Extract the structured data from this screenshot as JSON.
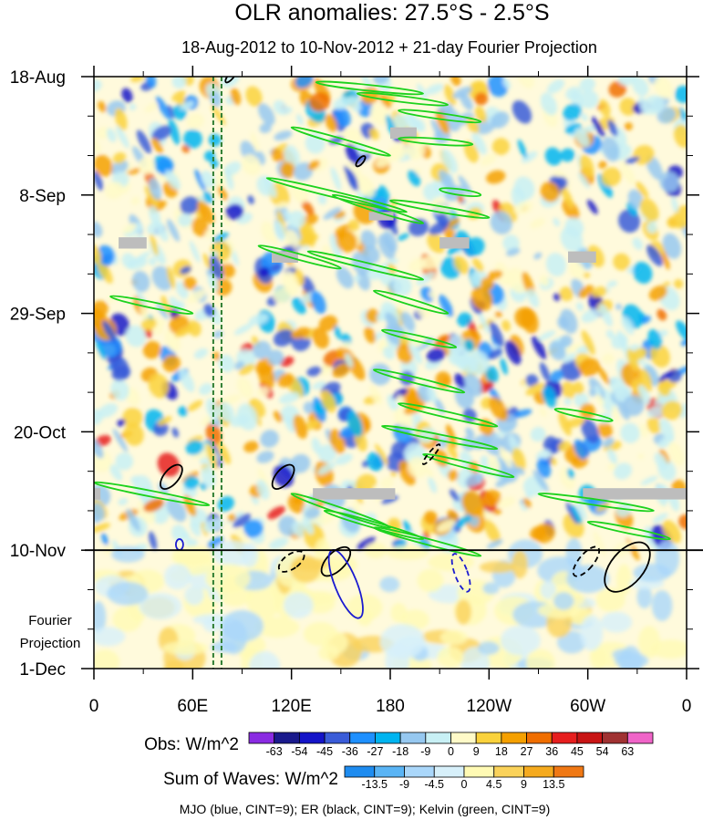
{
  "chart_data": {
    "type": "heatmap",
    "title": "OLR anomalies: 27.5°S - 2.5°S",
    "subtitle": "18-Aug-2012 to 10-Nov-2012 + 21-day Fourier Projection",
    "x_axis": {
      "label": "",
      "ticks": [
        "0",
        "60E",
        "120E",
        "180",
        "120W",
        "60W",
        "0"
      ],
      "tick_lon_east": [
        0,
        60,
        120,
        180,
        240,
        300,
        360
      ],
      "range": [
        0,
        360
      ]
    },
    "y_axis": {
      "ticks": [
        "18-Aug",
        "8-Sep",
        "29-Sep",
        "20-Oct",
        "10-Nov",
        "1-Dec"
      ],
      "tick_day": [
        0,
        21,
        42,
        63,
        84,
        105
      ],
      "range_days": [
        0,
        105
      ],
      "projection_label": [
        "Fourier",
        "Projection"
      ],
      "projection_start_day": 84
    },
    "reference_lines": {
      "vertical_dashed_lon": [
        72.5,
        77.5
      ],
      "horizontal_solid_day": 84
    },
    "obs_colorbar": {
      "label": "Obs: W/m^2",
      "levels": [
        "-63",
        "-54",
        "-45",
        "-36",
        "-27",
        "-18",
        "-9",
        "0",
        "9",
        "18",
        "27",
        "36",
        "45",
        "54",
        "63"
      ],
      "colors": [
        "#8a2be2",
        "#1a1a8c",
        "#1414c8",
        "#3a5cd8",
        "#1e90ff",
        "#00b4f0",
        "#96c8f0",
        "#c8f0f5",
        "#fffac8",
        "#fad23c",
        "#f5a000",
        "#f06e00",
        "#e61e1e",
        "#c81414",
        "#a03232",
        "#f064c8"
      ]
    },
    "waves_colorbar": {
      "label": "Sum of Waves: W/m^2",
      "levels": [
        "-13.5",
        "-9",
        "-4.5",
        "0",
        "4.5",
        "9",
        "13.5"
      ],
      "colors": [
        "#1e8cf0",
        "#5ab4f5",
        "#aad7fa",
        "#d7f0fa",
        "#fffab4",
        "#fad25a",
        "#f5aa1e",
        "#f07814"
      ]
    },
    "footer": "MJO (blue, CINT=9); ER (black, CINT=9); Kelvin (green, CINT=9)",
    "wave_colors": {
      "mjo": "#1a1ad0",
      "er": "#000000",
      "kelvin": "#1ed21e",
      "ref_line": "#2e7d32",
      "missing": "#bdbdbd"
    },
    "kelvin_contours": [
      {
        "lon0": 135,
        "day0": 1,
        "lon1": 200,
        "day1": 3
      },
      {
        "lon0": 160,
        "day0": 3,
        "lon1": 215,
        "day1": 5
      },
      {
        "lon0": 185,
        "day0": 6,
        "lon1": 235,
        "day1": 8
      },
      {
        "lon0": 120,
        "day0": 9,
        "lon1": 180,
        "day1": 14
      },
      {
        "lon0": 185,
        "day0": 11,
        "lon1": 230,
        "day1": 12
      },
      {
        "lon0": 105,
        "day0": 18,
        "lon1": 190,
        "day1": 24
      },
      {
        "lon0": 145,
        "day0": 21,
        "lon1": 200,
        "day1": 26
      },
      {
        "lon0": 210,
        "day0": 20,
        "lon1": 235,
        "day1": 21
      },
      {
        "lon0": 180,
        "day0": 22,
        "lon1": 240,
        "day1": 25
      },
      {
        "lon0": 100,
        "day0": 30,
        "lon1": 150,
        "day1": 34
      },
      {
        "lon0": 130,
        "day0": 31,
        "lon1": 200,
        "day1": 36
      },
      {
        "lon0": 170,
        "day0": 38,
        "lon1": 215,
        "day1": 42
      },
      {
        "lon0": 10,
        "day0": 39,
        "lon1": 60,
        "day1": 42
      },
      {
        "lon0": 175,
        "day0": 45,
        "lon1": 220,
        "day1": 48
      },
      {
        "lon0": 170,
        "day0": 52,
        "lon1": 225,
        "day1": 56
      },
      {
        "lon0": 185,
        "day0": 58,
        "lon1": 245,
        "day1": 62
      },
      {
        "lon0": 280,
        "day0": 59,
        "lon1": 315,
        "day1": 61
      },
      {
        "lon0": 175,
        "day0": 62,
        "lon1": 245,
        "day1": 66
      },
      {
        "lon0": 200,
        "day0": 67,
        "lon1": 255,
        "day1": 71
      },
      {
        "lon0": 0,
        "day0": 72,
        "lon1": 70,
        "day1": 76
      },
      {
        "lon0": 120,
        "day0": 74,
        "lon1": 180,
        "day1": 80
      },
      {
        "lon0": 140,
        "day0": 77,
        "lon1": 200,
        "day1": 82
      },
      {
        "lon0": 170,
        "day0": 80,
        "lon1": 235,
        "day1": 85
      },
      {
        "lon0": 270,
        "day0": 74,
        "lon1": 340,
        "day1": 77
      },
      {
        "lon0": 300,
        "day0": 79,
        "lon1": 350,
        "day1": 82
      }
    ],
    "er_contours": [
      {
        "lon": 47,
        "day": 71,
        "rx": 8,
        "ry": 16,
        "rot": 40,
        "dashed": false
      },
      {
        "lon": 115,
        "day": 71,
        "rx": 8,
        "ry": 16,
        "rot": 40,
        "dashed": false
      },
      {
        "lon": 162,
        "day": 15,
        "rx": 3,
        "ry": 7,
        "rot": 40,
        "dashed": false
      },
      {
        "lon": 205,
        "day": 67,
        "rx": 3,
        "ry": 14,
        "rot": 40,
        "dashed": true
      },
      {
        "lon": 120,
        "day": 86,
        "rx": 8,
        "ry": 16,
        "rot": 55,
        "dashed": true
      },
      {
        "lon": 147,
        "day": 86,
        "rx": 10,
        "ry": 20,
        "rot": 45,
        "dashed": false
      },
      {
        "lon": 299,
        "day": 86,
        "rx": 8,
        "ry": 20,
        "rot": 40,
        "dashed": true
      },
      {
        "lon": 324,
        "day": 87,
        "rx": 18,
        "ry": 32,
        "rot": 40,
        "dashed": false
      },
      {
        "lon": 83,
        "day": 0,
        "rx": 3,
        "ry": 8,
        "rot": 40,
        "dashed": false
      }
    ],
    "mjo_contours": [
      {
        "lon": 153,
        "day": 90,
        "rx": 12,
        "ry": 40,
        "rot": -22,
        "dashed": false
      },
      {
        "lon": 223,
        "day": 88,
        "rx": 7,
        "ry": 22,
        "rot": -20,
        "dashed": true
      },
      {
        "lon": 52,
        "day": 83,
        "rx": 4,
        "ry": 6,
        "rot": 0,
        "dashed": false
      }
    ],
    "missing_data_blocks": [
      {
        "lon0": 180,
        "lon1": 196,
        "day0": 9,
        "day1": 11
      },
      {
        "lon0": 167,
        "lon1": 182,
        "day0": 24,
        "day1": 25.5
      },
      {
        "lon0": 15,
        "lon1": 32,
        "day0": 28.5,
        "day1": 30.5
      },
      {
        "lon0": 108,
        "lon1": 124,
        "day0": 31,
        "day1": 33
      },
      {
        "lon0": 210,
        "lon1": 228,
        "day0": 28.5,
        "day1": 30.5
      },
      {
        "lon0": 288,
        "lon1": 305,
        "day0": 31,
        "day1": 33
      },
      {
        "lon0": 133,
        "lon1": 183,
        "day0": 73,
        "day1": 75
      },
      {
        "lon0": 297,
        "lon1": 360,
        "day0": 73,
        "day1": 75
      },
      {
        "lon0": 0,
        "lon1": 4,
        "day0": 73,
        "day1": 75
      }
    ]
  }
}
